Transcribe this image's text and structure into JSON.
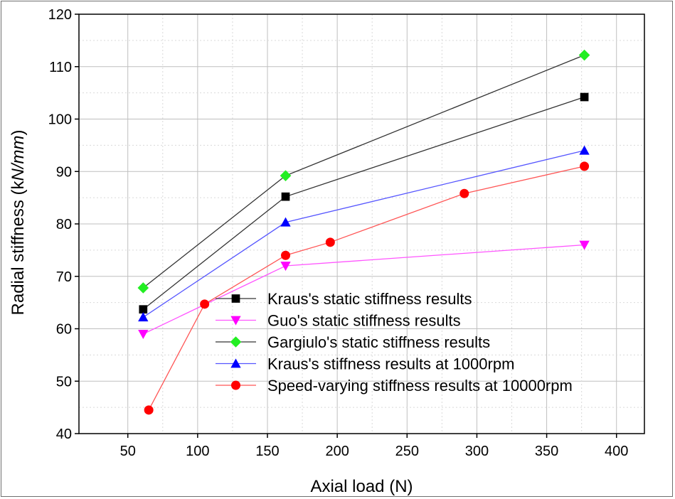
{
  "chart_data": {
    "type": "line",
    "title": "",
    "xlabel": "Axial load (N)",
    "ylabel_prefix": "Radial stiffness (k",
    "ylabel_italic": "N/mm",
    "ylabel_suffix": ")",
    "xlim": [
      15,
      420
    ],
    "ylim": [
      40,
      120
    ],
    "xticks": [
      50,
      100,
      150,
      200,
      250,
      300,
      350,
      400
    ],
    "yticks": [
      40,
      50,
      60,
      70,
      80,
      90,
      100,
      110,
      120
    ],
    "grid": true,
    "legend_position": "bottom-right",
    "series": [
      {
        "name": "Kraus's static stiffness results",
        "marker": "square",
        "color": "#000000",
        "line_color": "#333333",
        "x": [
          61,
          163,
          377
        ],
        "y": [
          63.7,
          85.2,
          104.2
        ]
      },
      {
        "name": "Guo's static stiffness results",
        "marker": "triangle-down",
        "color": "#ff00ff",
        "line_color": "#ff55ff",
        "x": [
          61,
          163,
          377
        ],
        "y": [
          59,
          72,
          76
        ]
      },
      {
        "name": "Gargiulo's static stiffness results",
        "marker": "diamond",
        "color": "#22ee22",
        "line_color": "#333333",
        "x": [
          61,
          163,
          377
        ],
        "y": [
          67.8,
          89.2,
          112.2
        ]
      },
      {
        "name": "Kraus's stiffness results at 1000rpm",
        "marker": "triangle-up",
        "color": "#0000ff",
        "line_color": "#5555ff",
        "x": [
          61,
          163,
          377
        ],
        "y": [
          62.2,
          80.3,
          94
        ]
      },
      {
        "name": "Speed-varying stiffness results at 10000rpm",
        "marker": "circle",
        "color": "#ff0000",
        "line_color": "#ff5555",
        "x": [
          65,
          105,
          163,
          195,
          291,
          377
        ],
        "y": [
          44.5,
          64.7,
          74,
          76.5,
          85.8,
          91
        ]
      }
    ]
  }
}
